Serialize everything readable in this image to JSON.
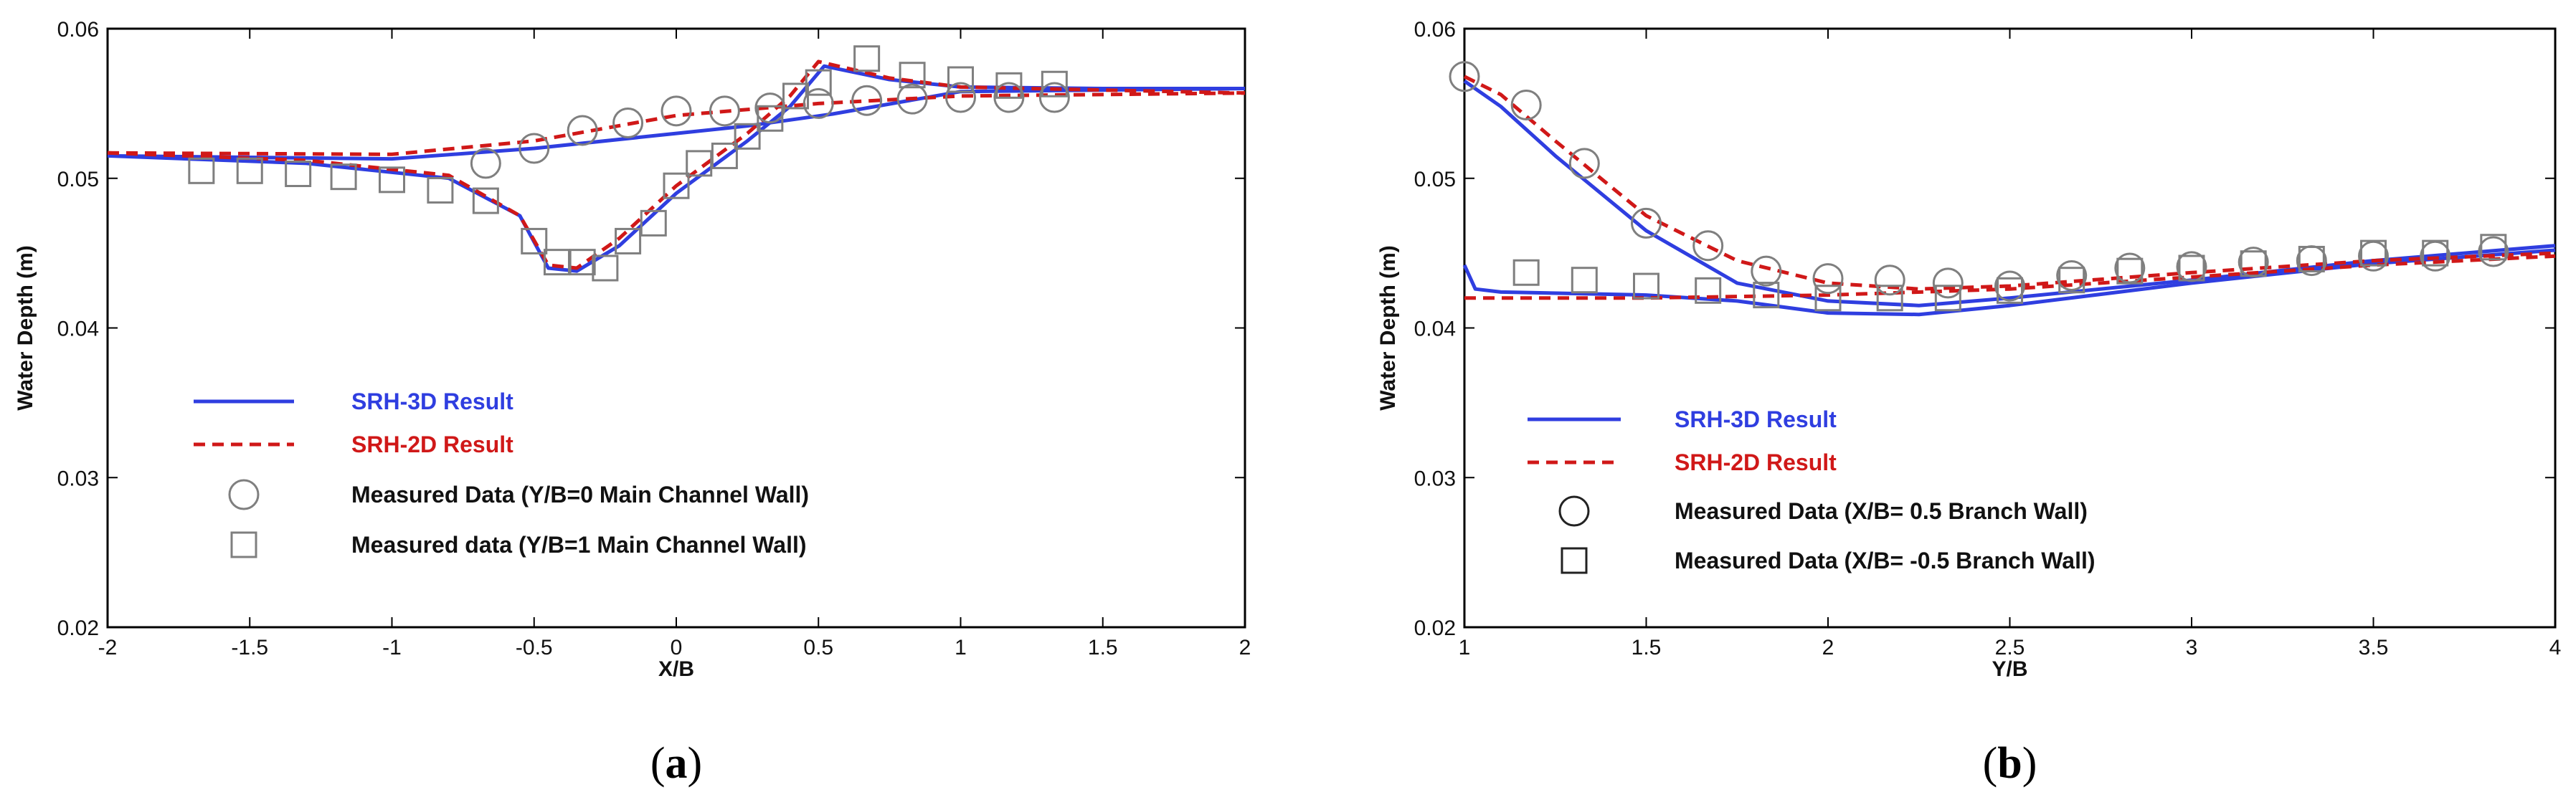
{
  "colors": {
    "srh3d": "#2f3ee0",
    "srh2d": "#d01818",
    "marker": "#7f7f7f",
    "text": "#111111"
  },
  "chart_data": [
    {
      "type": "line",
      "caption_prefix": "(",
      "caption_letter": "a",
      "caption_suffix": ")",
      "xlabel": "X/B",
      "ylabel": "Water Depth (m)",
      "xlim": [
        -2,
        2
      ],
      "ylim": [
        0.02,
        0.06
      ],
      "xticks": [
        "-2",
        "-1.5",
        "-1",
        "-0.5",
        "0",
        "0.5",
        "1",
        "1.5",
        "2"
      ],
      "yticks": [
        "0.02",
        "0.03",
        "0.04",
        "0.05",
        "0.06"
      ],
      "legend": [
        "SRH-3D Result",
        "SRH-2D Result",
        "Measured Data (Y/B=0 Main Channel Wall)",
        "Measured data (Y/B=1 Main Channel Wall)"
      ],
      "series": [
        {
          "name": "SRH-3D Result",
          "style": "solid",
          "x": [
            -2,
            -1,
            -0.5,
            0,
            0.25,
            0.55,
            1,
            2
          ],
          "y": [
            0.0515,
            0.0513,
            0.052,
            0.053,
            0.0535,
            0.0543,
            0.0558,
            0.056
          ]
        },
        {
          "name": "SRH-3D Result",
          "style": "solid",
          "x": [
            -2,
            -1.3,
            -0.8,
            -0.55,
            -0.45,
            -0.35,
            -0.2,
            0,
            0.25,
            0.4,
            0.52,
            0.75,
            1,
            1.5,
            2
          ],
          "y": [
            0.0515,
            0.051,
            0.05,
            0.0475,
            0.044,
            0.0438,
            0.0455,
            0.049,
            0.0525,
            0.0548,
            0.0575,
            0.0566,
            0.0561,
            0.056,
            0.056
          ]
        },
        {
          "name": "SRH-2D Result",
          "style": "dashed",
          "x": [
            -2,
            -1,
            -0.5,
            0,
            0.5,
            1,
            2
          ],
          "y": [
            0.0517,
            0.0516,
            0.0525,
            0.0542,
            0.055,
            0.0555,
            0.0557
          ]
        },
        {
          "name": "SRH-2D Result",
          "style": "dashed",
          "x": [
            -2,
            -1.3,
            -0.8,
            -0.55,
            -0.45,
            -0.35,
            -0.2,
            0,
            0.25,
            0.4,
            0.5,
            0.75,
            1,
            2
          ],
          "y": [
            0.0517,
            0.0512,
            0.0502,
            0.0475,
            0.0442,
            0.044,
            0.046,
            0.0495,
            0.053,
            0.0555,
            0.0578,
            0.0567,
            0.0561,
            0.0557
          ]
        },
        {
          "name": "Measured Data (Y/B=0 Main Channel Wall)",
          "marker": "circle",
          "x": [
            -0.67,
            -0.5,
            -0.33,
            -0.17,
            0,
            0.17,
            0.33,
            0.5,
            0.67,
            0.83,
            1,
            1.17,
            1.33
          ],
          "y": [
            0.051,
            0.052,
            0.0532,
            0.0537,
            0.0545,
            0.0545,
            0.0547,
            0.055,
            0.0552,
            0.0553,
            0.0554,
            0.0554,
            0.0554
          ]
        },
        {
          "name": "Measured data (Y/B=1 Main Channel Wall)",
          "marker": "square",
          "x": [
            -1.67,
            -1.5,
            -1.33,
            -1.17,
            -1,
            -0.83,
            -0.67,
            -0.5,
            -0.42,
            -0.33,
            -0.25,
            -0.17,
            -0.08,
            0,
            0.08,
            0.17,
            0.25,
            0.33,
            0.42,
            0.5,
            0.67,
            0.83,
            1,
            1.17,
            1.33
          ],
          "y": [
            0.0505,
            0.0505,
            0.0503,
            0.0501,
            0.0499,
            0.0492,
            0.0485,
            0.0458,
            0.0444,
            0.0444,
            0.044,
            0.0458,
            0.047,
            0.0495,
            0.051,
            0.0515,
            0.0528,
            0.054,
            0.0555,
            0.0564,
            0.058,
            0.0569,
            0.0566,
            0.0562,
            0.0563
          ]
        }
      ]
    },
    {
      "type": "line",
      "caption_prefix": "(",
      "caption_letter": "b",
      "caption_suffix": ")",
      "xlabel": "Y/B",
      "ylabel": "Water Depth (m)",
      "xlim": [
        1,
        4
      ],
      "ylim": [
        0.02,
        0.06
      ],
      "xticks": [
        "1",
        "1.5",
        "2",
        "2.5",
        "3",
        "3.5",
        "4"
      ],
      "yticks": [
        "0.02",
        "0.03",
        "0.04",
        "0.05",
        "0.06"
      ],
      "legend": [
        "SRH-3D Result",
        "SRH-2D Result",
        "Measured Data (X/B=  0.5 Branch Wall)",
        "Measured Data (X/B= -0.5 Branch Wall)"
      ],
      "series": [
        {
          "name": "SRH-3D Result",
          "style": "solid",
          "x": [
            1,
            1.1,
            1.25,
            1.5,
            1.75,
            2,
            2.25,
            2.5,
            3,
            3.5,
            4
          ],
          "y": [
            0.0565,
            0.0548,
            0.0515,
            0.0465,
            0.043,
            0.0418,
            0.0415,
            0.042,
            0.0432,
            0.0445,
            0.0455
          ]
        },
        {
          "name": "SRH-3D Result",
          "style": "solid",
          "x": [
            1,
            1.03,
            1.1,
            1.5,
            1.75,
            2,
            2.25,
            2.5,
            3,
            3.5,
            4
          ],
          "y": [
            0.0442,
            0.0426,
            0.0424,
            0.0422,
            0.0418,
            0.041,
            0.0409,
            0.0415,
            0.043,
            0.0443,
            0.0452
          ]
        },
        {
          "name": "SRH-2D Result",
          "style": "dashed",
          "x": [
            1,
            1.1,
            1.25,
            1.5,
            1.75,
            2,
            2.25,
            2.5,
            3,
            3.5,
            4
          ],
          "y": [
            0.0568,
            0.0556,
            0.0525,
            0.0475,
            0.0445,
            0.043,
            0.0426,
            0.0428,
            0.0437,
            0.0445,
            0.045
          ]
        },
        {
          "name": "SRH-2D Result",
          "style": "dashed",
          "x": [
            1,
            1.5,
            2,
            2.5,
            3,
            3.5,
            4
          ],
          "y": [
            0.042,
            0.042,
            0.0422,
            0.0426,
            0.0434,
            0.0442,
            0.0448
          ]
        },
        {
          "name": "Measured Data (X/B=  0.5 Branch Wall)",
          "marker": "circle",
          "x": [
            1,
            1.17,
            1.33,
            1.5,
            1.67,
            1.83,
            2,
            2.17,
            2.33,
            2.5,
            2.67,
            2.83,
            3,
            3.17,
            3.33,
            3.5,
            3.67,
            3.83
          ],
          "y": [
            0.0568,
            0.0549,
            0.051,
            0.047,
            0.0455,
            0.0438,
            0.0433,
            0.0432,
            0.043,
            0.0428,
            0.0435,
            0.044,
            0.0441,
            0.0444,
            0.0445,
            0.0448,
            0.0448,
            0.0451
          ]
        },
        {
          "name": "Measured Data (X/B= -0.5 Branch Wall)",
          "marker": "square",
          "x": [
            1.17,
            1.33,
            1.5,
            1.67,
            1.83,
            2,
            2.17,
            2.33,
            2.5,
            2.67,
            2.83,
            3,
            3.17,
            3.33,
            3.5,
            3.67,
            3.83
          ],
          "y": [
            0.0437,
            0.0432,
            0.0428,
            0.0425,
            0.0422,
            0.042,
            0.042,
            0.042,
            0.0425,
            0.0432,
            0.0438,
            0.044,
            0.0443,
            0.0446,
            0.045,
            0.045,
            0.0454
          ]
        }
      ]
    }
  ]
}
